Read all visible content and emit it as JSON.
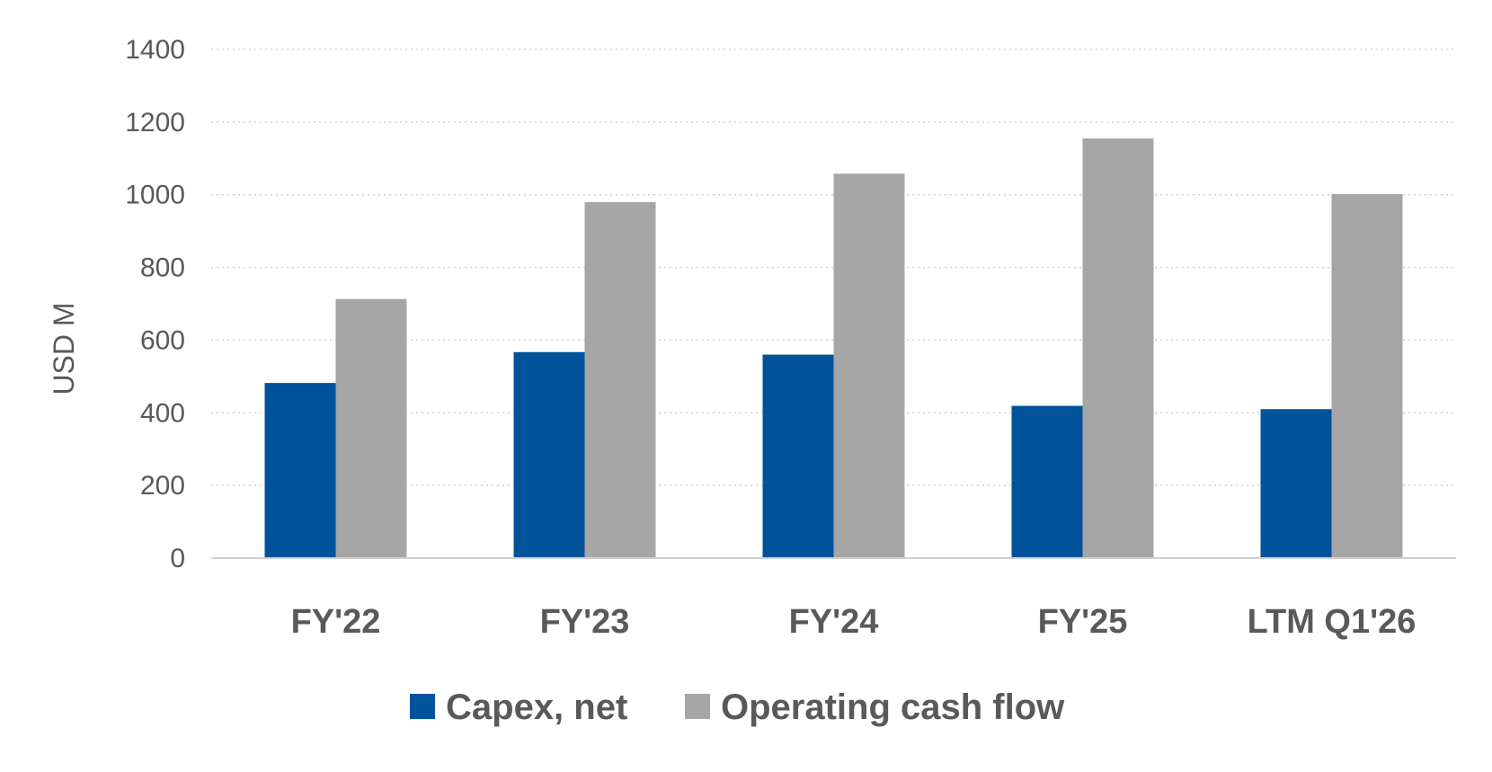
{
  "chart_data": {
    "type": "bar",
    "title": "",
    "xlabel": "",
    "ylabel": "USD M",
    "ylim": [
      0,
      1400
    ],
    "yticks": [
      0,
      200,
      400,
      600,
      800,
      1000,
      1200,
      1400
    ],
    "grid": true,
    "legend_position": "bottom",
    "categories": [
      "FY'22",
      "FY'23",
      "FY'24",
      "FY'25",
      "LTM Q1'26"
    ],
    "series": [
      {
        "name": "Capex, net",
        "color": "#00539b",
        "values": [
          482,
          567,
          560,
          419,
          410
        ]
      },
      {
        "name": "Operating cash flow",
        "color": "#a6a6a6",
        "values": [
          713,
          980,
          1058,
          1155,
          1002
        ]
      }
    ]
  }
}
